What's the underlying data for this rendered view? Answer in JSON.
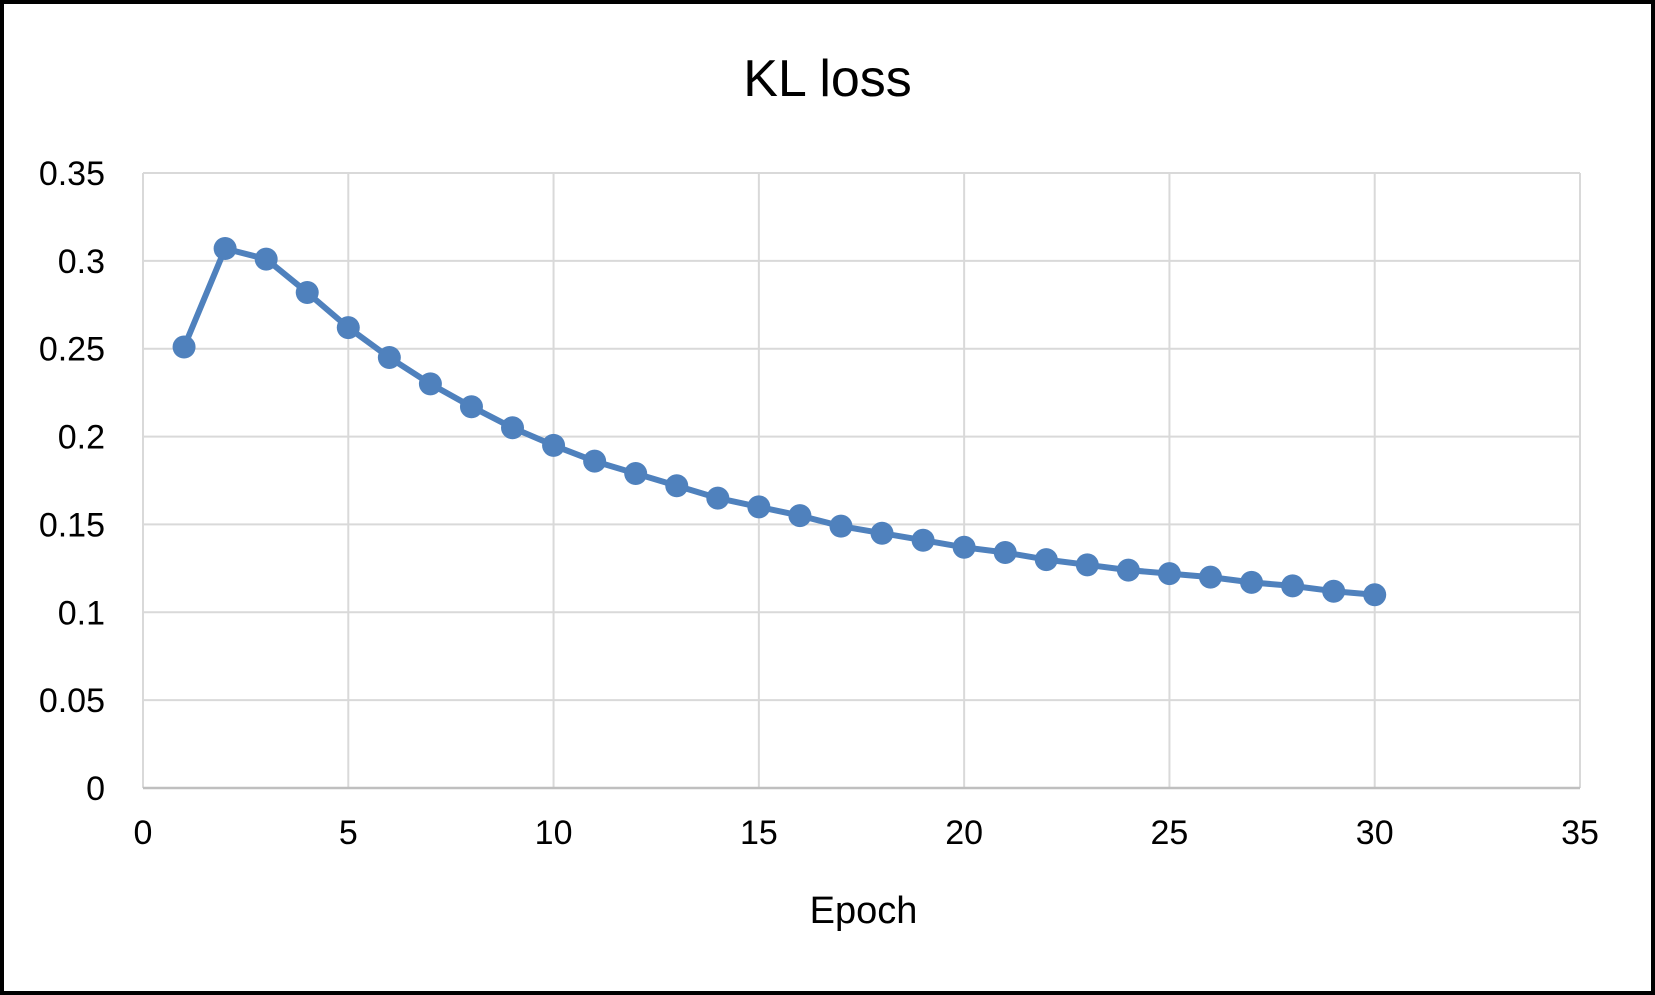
{
  "chart_data": {
    "type": "line",
    "title": "KL loss",
    "xlabel": "Epoch",
    "ylabel": "",
    "xlim": [
      0,
      35
    ],
    "ylim": [
      0,
      0.35
    ],
    "xticks": [
      0,
      5,
      10,
      15,
      20,
      25,
      30,
      35
    ],
    "yticks": [
      0,
      0.05,
      0.1,
      0.15,
      0.2,
      0.25,
      0.3,
      0.35
    ],
    "xtick_labels": [
      "0",
      "5",
      "10",
      "15",
      "20",
      "25",
      "30",
      "35"
    ],
    "ytick_labels": [
      "0",
      "0.05",
      "0.1",
      "0.15",
      "0.2",
      "0.25",
      "0.3",
      "0.35"
    ],
    "grid": true,
    "legend": "none",
    "series": [
      {
        "color": "#4F81BD",
        "marker": "circle",
        "x": [
          1,
          2,
          3,
          4,
          5,
          6,
          7,
          8,
          9,
          10,
          11,
          12,
          13,
          14,
          15,
          16,
          17,
          18,
          19,
          20,
          21,
          22,
          23,
          24,
          25,
          26,
          27,
          28,
          29,
          30
        ],
        "y": [
          0.251,
          0.307,
          0.301,
          0.282,
          0.262,
          0.245,
          0.23,
          0.217,
          0.205,
          0.195,
          0.186,
          0.179,
          0.172,
          0.165,
          0.16,
          0.155,
          0.149,
          0.145,
          0.141,
          0.137,
          0.134,
          0.13,
          0.127,
          0.124,
          0.122,
          0.12,
          0.117,
          0.115,
          0.112,
          0.11
        ]
      }
    ]
  }
}
